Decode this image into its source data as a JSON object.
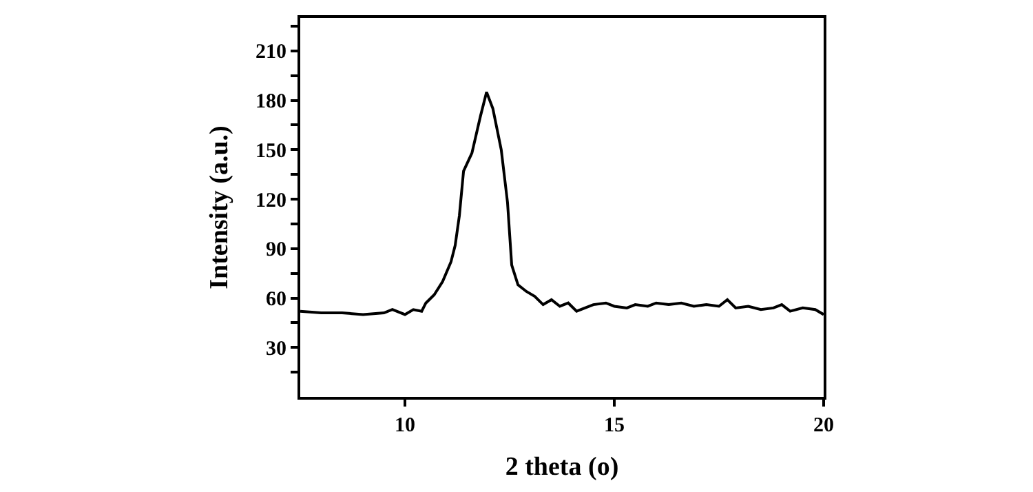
{
  "chart_data": {
    "type": "line",
    "xlabel": "2 theta (o)",
    "ylabel": "Intensity (a.u.)",
    "x": [
      7.5,
      8,
      8.5,
      9,
      9.5,
      9.7,
      10,
      10.2,
      10.4,
      10.5,
      10.7,
      10.9,
      11.1,
      11.2,
      11.3,
      11.4,
      11.6,
      11.8,
      11.95,
      12.1,
      12.3,
      12.45,
      12.55,
      12.7,
      12.9,
      13.1,
      13.3,
      13.5,
      13.7,
      13.9,
      14.1,
      14.3,
      14.5,
      14.8,
      15,
      15.3,
      15.5,
      15.8,
      16,
      16.3,
      16.6,
      16.9,
      17.2,
      17.5,
      17.7,
      17.9,
      18.2,
      18.5,
      18.8,
      19,
      19.2,
      19.5,
      19.8,
      20
    ],
    "series": [
      {
        "color": "#000000",
        "values": [
          52,
          51,
          51,
          50,
          51,
          53,
          50,
          53,
          52,
          57,
          62,
          70,
          82,
          92,
          110,
          137,
          148,
          170,
          185,
          175,
          150,
          118,
          80,
          68,
          64,
          61,
          56,
          59,
          55,
          57,
          52,
          54,
          56,
          57,
          55,
          54,
          56,
          55,
          57,
          56,
          57,
          55,
          56,
          55,
          59,
          54,
          55,
          53,
          54,
          56,
          52,
          54,
          53,
          50
        ]
      }
    ],
    "xlim": [
      7.5,
      20
    ],
    "xticks": [
      10,
      15,
      20
    ],
    "ylim": [
      0,
      230
    ],
    "yticks": [
      {
        "value": 15,
        "label": null
      },
      30,
      {
        "value": 45,
        "label": null
      },
      60,
      {
        "value": 75,
        "label": null
      },
      90,
      {
        "value": 105,
        "label": null
      },
      120,
      {
        "value": 135,
        "label": null
      },
      150,
      {
        "value": 165,
        "label": null
      },
      180,
      {
        "value": 195,
        "label": null
      },
      210,
      {
        "value": 225,
        "label": null
      }
    ],
    "marker": "none",
    "line_style": "solid"
  }
}
